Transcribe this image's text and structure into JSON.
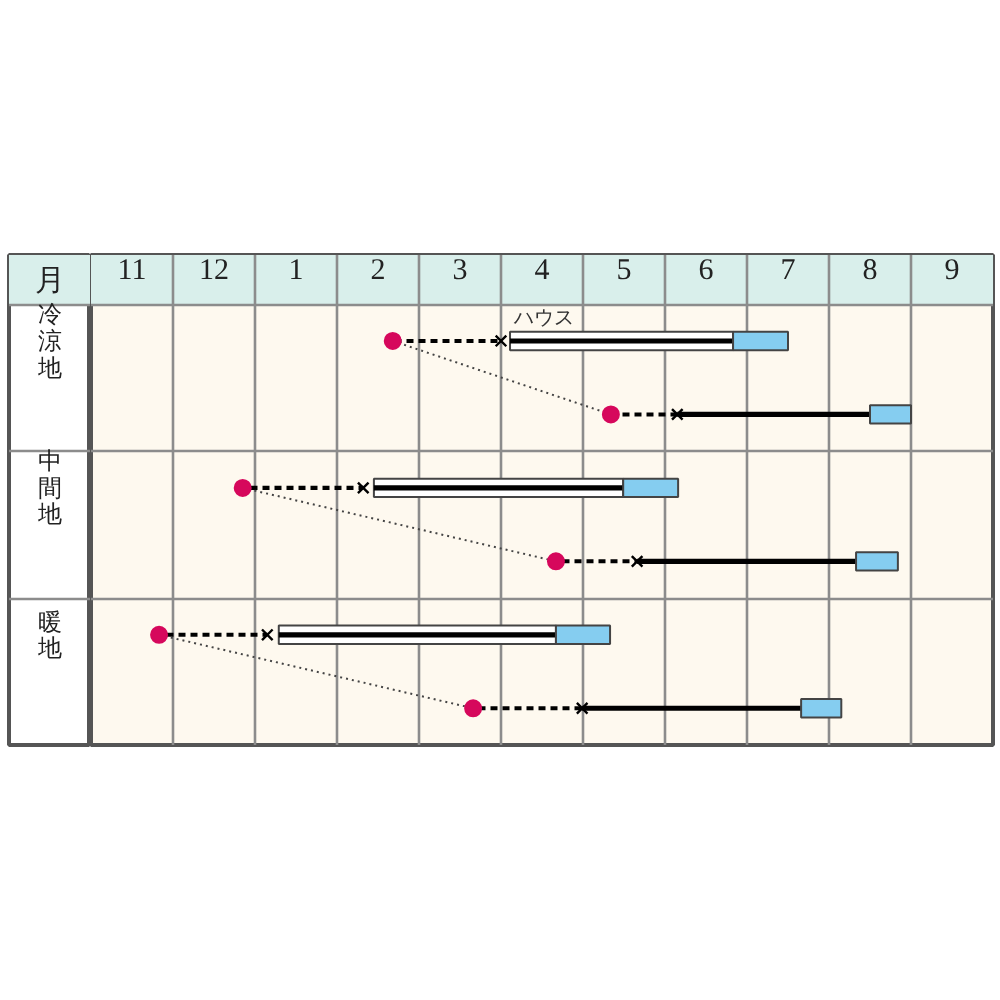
{
  "chart_data": {
    "type": "bar",
    "orientation": "horizontal",
    "xlabel": "月",
    "categories": [
      "冷涼地",
      null,
      "中間地",
      null,
      "暖地",
      null
    ],
    "xlim": [
      -1.5,
      9.5
    ],
    "xticks": [
      1,
      2,
      3,
      4,
      5,
      6,
      7,
      8,
      9
    ],
    "x2lim": [
      10.5,
      21.5
    ],
    "x2ticks": [
      11,
      12
    ],
    "series": [
      {
        "type": "bar",
        "line_style": "dashed",
        "color": "#000000",
        "base": [
          2.18,
          4.84,
          0.35,
          4.17,
          -0.67,
          3.16
        ],
        "values": [
          1.32,
          0.81,
          1.47,
          0.99,
          1.32,
          1.33
        ]
      },
      {
        "type": "bar",
        "name": "ハウス",
        "color": "#ffffff",
        "base": [
          3.61,
          null,
          1.95,
          null,
          0.79,
          null
        ],
        "values": [
          2.72,
          null,
          3.04,
          null,
          3.38,
          null
        ]
      },
      {
        "type": "bar",
        "line_style": "solid",
        "color": "#000000",
        "base": [
          3.61,
          5.65,
          1.95,
          5.16,
          0.79,
          4.49
        ],
        "values": [
          2.72,
          2.35,
          3.04,
          2.67,
          3.38,
          2.67
        ]
      },
      {
        "type": "bar",
        "color": "#85cdf0",
        "base": [
          6.33,
          8,
          4.99,
          7.83,
          4.17,
          7.16
        ],
        "values": [
          0.67,
          0.5,
          0.67,
          0.51,
          0.66,
          0.49
        ]
      },
      {
        "type": "line",
        "line_style": "dotted",
        "color": "#444444",
        "values": [
          2.18,
          4.84,
          null,
          null,
          null,
          null
        ]
      },
      {
        "type": "line",
        "line_style": "dotted",
        "color": "#444444",
        "values": [
          null,
          null,
          0.35,
          4.17,
          null,
          null
        ]
      },
      {
        "type": "line",
        "line_style": "dotted",
        "color": "#444444",
        "values": [
          null,
          null,
          null,
          null,
          -0.67,
          3.16
        ]
      },
      {
        "type": "scatter",
        "marker": "circle",
        "color": "#d6085c",
        "values": [
          2.18,
          4.84,
          0.35,
          4.17,
          -0.67,
          3.16
        ]
      },
      {
        "type": "scatter",
        "marker": "cross",
        "color": "#000000",
        "values": [
          3.5,
          5.65,
          1.82,
          5.16,
          0.65,
          4.49
        ]
      }
    ],
    "grid": true
  }
}
